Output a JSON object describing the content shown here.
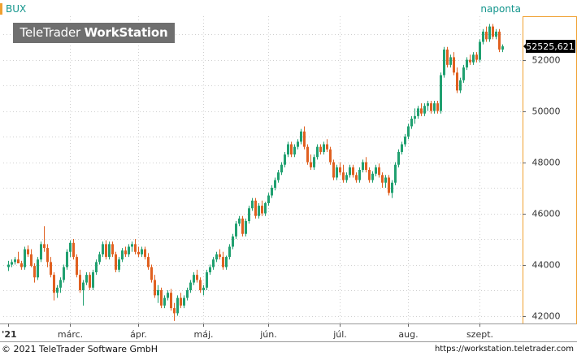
{
  "header": {
    "symbol": "BUX",
    "interval": "naponta",
    "watermark_light": "TeleTrader ",
    "watermark_bold": "WorkStation"
  },
  "footer": {
    "copyright": "© 2021 TeleTrader Software GmbH",
    "url": "https://workstation.teletrader.com"
  },
  "colors": {
    "up": "#20a070",
    "down": "#e06020",
    "grid": "#cfcfcf",
    "accent": "#f0a030",
    "text_teal": "#13958c"
  },
  "chart_data": {
    "type": "candlestick",
    "title": "",
    "xlabel": "",
    "ylabel": "",
    "ylim": [
      41700,
      53700
    ],
    "yticks": [
      42000,
      44000,
      46000,
      48000,
      50000,
      52000
    ],
    "ytick_labels": [
      "42000",
      "44000",
      "46000",
      "48000",
      "50000",
      "52000"
    ],
    "xtick_labels": [
      "'21",
      "márc.",
      "ápr.",
      "máj.",
      "jún.",
      "júl.",
      "aug.",
      "szept."
    ],
    "xtick_index": [
      0,
      19,
      40,
      60,
      80,
      102,
      123,
      145
    ],
    "last_value": 52525.621,
    "last_value_label": "52525,621",
    "grid": true,
    "series": [
      {
        "ohlc": [
          [
            43900,
            44150,
            43750,
            44000
          ],
          [
            44000,
            44200,
            43900,
            44100
          ],
          [
            44100,
            44300,
            44000,
            44200
          ],
          [
            44200,
            44500,
            44050,
            44050
          ],
          [
            44050,
            44150,
            43800,
            43900
          ],
          [
            43900,
            44700,
            43800,
            44600
          ],
          [
            44600,
            44750,
            44300,
            44400
          ],
          [
            44400,
            44600,
            43900,
            43950
          ],
          [
            43950,
            44050,
            43300,
            43500
          ],
          [
            43500,
            44300,
            43400,
            44200
          ],
          [
            44200,
            44900,
            44100,
            44800
          ],
          [
            44800,
            45500,
            44500,
            44650
          ],
          [
            44650,
            44800,
            43900,
            44100
          ],
          [
            44100,
            44300,
            43500,
            43600
          ],
          [
            43600,
            43700,
            42600,
            42900
          ],
          [
            42900,
            43200,
            42700,
            43100
          ],
          [
            43100,
            43500,
            42900,
            43400
          ],
          [
            43400,
            44000,
            43300,
            43900
          ],
          [
            43900,
            44600,
            43800,
            44500
          ],
          [
            44500,
            44950,
            44300,
            44850
          ],
          [
            44850,
            45000,
            44200,
            44300
          ],
          [
            44300,
            44400,
            43500,
            43600
          ],
          [
            43600,
            43800,
            42900,
            43000
          ],
          [
            43000,
            43400,
            42400,
            43300
          ],
          [
            43300,
            43700,
            43200,
            43600
          ],
          [
            43600,
            43700,
            43000,
            43100
          ],
          [
            43100,
            43800,
            43000,
            43700
          ],
          [
            43700,
            44200,
            43600,
            44100
          ],
          [
            44100,
            44500,
            44000,
            44400
          ],
          [
            44400,
            44900,
            44300,
            44800
          ],
          [
            44800,
            44950,
            44200,
            44300
          ],
          [
            44300,
            44900,
            44200,
            44800
          ],
          [
            44800,
            44900,
            44300,
            44400
          ],
          [
            44400,
            44500,
            43700,
            43800
          ],
          [
            43800,
            44300,
            43700,
            44200
          ],
          [
            44200,
            44650,
            44100,
            44550
          ],
          [
            44550,
            44700,
            44300,
            44400
          ],
          [
            44400,
            44800,
            44300,
            44700
          ],
          [
            44700,
            44900,
            44500,
            44800
          ],
          [
            44800,
            45000,
            44400,
            44500
          ],
          [
            44500,
            44700,
            44300,
            44400
          ],
          [
            44400,
            44700,
            44300,
            44600
          ],
          [
            44600,
            44700,
            44200,
            44300
          ],
          [
            44300,
            44450,
            43800,
            43900
          ],
          [
            43900,
            44000,
            43300,
            43400
          ],
          [
            43400,
            43600,
            42700,
            42800
          ],
          [
            42800,
            43200,
            42500,
            43000
          ],
          [
            43000,
            43100,
            42300,
            42400
          ],
          [
            42400,
            42800,
            42300,
            42700
          ],
          [
            42700,
            43000,
            42600,
            42900
          ],
          [
            42900,
            43050,
            42200,
            42300
          ],
          [
            42300,
            42500,
            41800,
            42100
          ],
          [
            42100,
            42800,
            42000,
            42700
          ],
          [
            42700,
            42900,
            42300,
            42400
          ],
          [
            42400,
            42800,
            42300,
            42700
          ],
          [
            42700,
            43100,
            42600,
            43000
          ],
          [
            43000,
            43400,
            42900,
            43300
          ],
          [
            43300,
            43700,
            43200,
            43600
          ],
          [
            43600,
            43800,
            43300,
            43400
          ],
          [
            43400,
            43500,
            42900,
            43000
          ],
          [
            43000,
            43200,
            42800,
            43100
          ],
          [
            43100,
            43800,
            43000,
            43700
          ],
          [
            43700,
            44000,
            43600,
            43900
          ],
          [
            43900,
            44300,
            43800,
            44200
          ],
          [
            44200,
            44500,
            44100,
            44400
          ],
          [
            44400,
            44600,
            44200,
            44300
          ],
          [
            44300,
            44500,
            43800,
            43900
          ],
          [
            43900,
            44350,
            43800,
            44300
          ],
          [
            44300,
            44800,
            44200,
            44700
          ],
          [
            44700,
            45200,
            44600,
            45100
          ],
          [
            45100,
            45700,
            45000,
            45600
          ],
          [
            45600,
            45900,
            45500,
            45800
          ],
          [
            45800,
            45900,
            45100,
            45200
          ],
          [
            45200,
            45800,
            45100,
            45700
          ],
          [
            45700,
            46300,
            45600,
            46200
          ],
          [
            46200,
            46600,
            46100,
            46500
          ],
          [
            46500,
            46600,
            45800,
            45900
          ],
          [
            45900,
            46400,
            45800,
            46300
          ],
          [
            46300,
            46500,
            45900,
            46000
          ],
          [
            46000,
            46450,
            45900,
            46400
          ],
          [
            46400,
            46800,
            46300,
            46700
          ],
          [
            46700,
            47100,
            46600,
            47000
          ],
          [
            47000,
            47400,
            46900,
            47300
          ],
          [
            47300,
            47700,
            47200,
            47600
          ],
          [
            47600,
            48000,
            47500,
            47900
          ],
          [
            47900,
            48400,
            47800,
            48300
          ],
          [
            48300,
            48800,
            48200,
            48700
          ],
          [
            48700,
            48800,
            48200,
            48300
          ],
          [
            48300,
            48700,
            48200,
            48600
          ],
          [
            48600,
            48900,
            48500,
            48800
          ],
          [
            48800,
            49300,
            48700,
            49200
          ],
          [
            49200,
            49400,
            48500,
            48600
          ],
          [
            48600,
            48700,
            47900,
            48000
          ],
          [
            48000,
            48300,
            47700,
            47800
          ],
          [
            47800,
            48300,
            47700,
            48200
          ],
          [
            48200,
            48700,
            48100,
            48600
          ],
          [
            48600,
            48700,
            48300,
            48400
          ],
          [
            48400,
            48800,
            48300,
            48700
          ],
          [
            48700,
            48900,
            48400,
            48500
          ],
          [
            48500,
            48600,
            47900,
            48000
          ],
          [
            48000,
            48100,
            47300,
            47400
          ],
          [
            47400,
            47900,
            47300,
            47800
          ],
          [
            47800,
            48000,
            47500,
            47600
          ],
          [
            47600,
            47900,
            47200,
            47300
          ],
          [
            47300,
            47600,
            47200,
            47500
          ],
          [
            47500,
            47900,
            47400,
            47800
          ],
          [
            47800,
            47900,
            47400,
            47500
          ],
          [
            47500,
            47600,
            47200,
            47300
          ],
          [
            47300,
            47800,
            47200,
            47700
          ],
          [
            47700,
            48100,
            47600,
            48000
          ],
          [
            48000,
            48200,
            47600,
            47700
          ],
          [
            47700,
            47800,
            47200,
            47300
          ],
          [
            47300,
            47650,
            47200,
            47550
          ],
          [
            47550,
            47900,
            47450,
            47800
          ],
          [
            47800,
            47950,
            47400,
            47500
          ],
          [
            47500,
            47600,
            47000,
            47200
          ],
          [
            47200,
            47500,
            47000,
            47400
          ],
          [
            47400,
            47500,
            46700,
            46800
          ],
          [
            46800,
            47300,
            46600,
            47200
          ],
          [
            47200,
            48000,
            47100,
            47900
          ],
          [
            47900,
            48500,
            47800,
            48400
          ],
          [
            48400,
            48800,
            48300,
            48700
          ],
          [
            48700,
            49100,
            48600,
            49000
          ],
          [
            49000,
            49500,
            48900,
            49400
          ],
          [
            49400,
            49800,
            49300,
            49700
          ],
          [
            49700,
            50100,
            49500,
            49800
          ],
          [
            49800,
            50200,
            49700,
            50100
          ],
          [
            50100,
            50300,
            49800,
            49900
          ],
          [
            49900,
            50300,
            49800,
            50200
          ],
          [
            50200,
            50400,
            50000,
            50300
          ],
          [
            50300,
            50400,
            49900,
            50000
          ],
          [
            50000,
            50400,
            49900,
            50300
          ],
          [
            50300,
            50400,
            49900,
            50000
          ],
          [
            50000,
            51500,
            49900,
            51400
          ],
          [
            51400,
            52500,
            51300,
            52400
          ],
          [
            52400,
            52500,
            51700,
            51800
          ],
          [
            51800,
            52200,
            51700,
            52100
          ],
          [
            52100,
            52300,
            51400,
            51500
          ],
          [
            51500,
            51700,
            50700,
            50800
          ],
          [
            50800,
            51300,
            50700,
            51200
          ],
          [
            51200,
            51800,
            51100,
            51700
          ],
          [
            51700,
            52100,
            51600,
            52000
          ],
          [
            52000,
            52200,
            51800,
            51900
          ],
          [
            51900,
            52300,
            51800,
            52200
          ],
          [
            52200,
            52300,
            51900,
            52000
          ],
          [
            52000,
            52800,
            51900,
            52700
          ],
          [
            52700,
            53200,
            52600,
            53100
          ],
          [
            53100,
            53300,
            52700,
            52800
          ],
          [
            52800,
            53400,
            52700,
            53300
          ],
          [
            53300,
            53400,
            52800,
            52900
          ],
          [
            52900,
            53200,
            52800,
            53100
          ],
          [
            53100,
            53200,
            52300,
            52400
          ],
          [
            52400,
            52600,
            52300,
            52525.621
          ]
        ]
      }
    ]
  }
}
